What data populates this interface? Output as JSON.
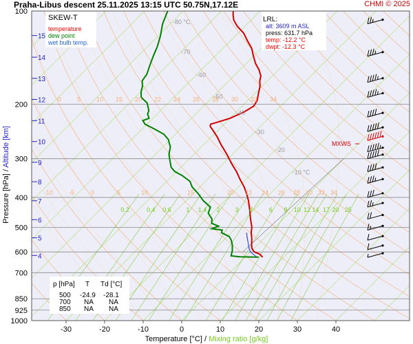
{
  "header": {
    "title": "Praha-Libus   descent   25.11.2025 13:15 UTC   50.75N,17.12E",
    "copyright": "CHMI © 2025"
  },
  "colors": {
    "background": "#eeeef8",
    "grid": "#888888",
    "isotherm": "#a8e068",
    "dry_adiabat": "#f2b07a",
    "moist_adiabat": "#f6c79c",
    "temperature": "#d00000",
    "dewpoint": "#008000",
    "wetbulb": "#2f4fcf",
    "mixing_ratio": "#88cc44",
    "mixing_label": "#77cc22",
    "wind": "#000000",
    "mxws": "#e00000",
    "legend_temp": "#ff0000",
    "legend_dew": "#008000",
    "legend_wet": "#2266dd",
    "alt": "#2222cc"
  },
  "chart_data": {
    "type": "line",
    "subtype": "skew-T log-p",
    "xlabel": "Temperature [°C]",
    "xlabel_sep": " / ",
    "xlabel2": "Mixing ratio [g/kg]",
    "ylabel": "Pressure [hPa]",
    "ylabel_sep": " / ",
    "ylabel2": "Altitude [km]",
    "x_ticks": [
      -30,
      -20,
      -10,
      0,
      10,
      20,
      30,
      40
    ],
    "p_ticks": [
      100,
      200,
      300,
      400,
      500,
      600,
      700,
      850,
      925,
      1000
    ],
    "alt_ticks": [
      {
        "km": 4,
        "p": 616
      },
      {
        "km": 5,
        "p": 540
      },
      {
        "km": 6,
        "p": 472
      },
      {
        "km": 7,
        "p": 410
      },
      {
        "km": 8,
        "p": 356
      },
      {
        "km": 9,
        "p": 308
      },
      {
        "km": 10,
        "p": 264
      },
      {
        "km": 11,
        "p": 226
      },
      {
        "km": 12,
        "p": 193
      },
      {
        "km": 13,
        "p": 165
      },
      {
        "km": 14,
        "p": 141
      },
      {
        "km": 15,
        "p": 120
      }
    ],
    "isotherm_labels": [
      {
        "t": -80,
        "p": 108,
        "text": "-80 °C"
      },
      {
        "t": -70,
        "p": 135,
        "text": "-70"
      },
      {
        "t": -60,
        "p": 160,
        "text": "-60"
      },
      {
        "t": -50,
        "p": 188,
        "text": "-50"
      },
      {
        "t": -40,
        "p": 212,
        "text": "-40"
      },
      {
        "t": -30,
        "p": 245,
        "text": "-30"
      },
      {
        "t": -20,
        "p": 280,
        "text": "-20"
      },
      {
        "t": -10,
        "p": 330,
        "text": "-10 °C"
      }
    ],
    "mixing_ratio_labels": [
      "0.2",
      "0.4",
      "0.6",
      "1",
      "1.4",
      "2",
      "3",
      "4",
      "6",
      "8",
      "10",
      "12",
      "14",
      "17",
      "20",
      "25"
    ],
    "moist_labels_200": [
      "0",
      "5",
      "10",
      "15",
      "20",
      "22",
      "24",
      "26",
      "28",
      "30",
      "32",
      "34"
    ],
    "moist_labels_400": [
      "-10",
      "-5",
      "0",
      "5",
      "10",
      "15",
      "20",
      "22",
      "24",
      "26",
      "28",
      "30",
      "32",
      "34"
    ],
    "series": [
      {
        "name": "temperature",
        "points": [
          [
            624,
            4.5
          ],
          [
            610,
            3.0
          ],
          [
            600,
            1.0
          ],
          [
            585,
            -0.5
          ],
          [
            570,
            -1.5
          ],
          [
            545,
            -3.0
          ],
          [
            520,
            -4.8
          ],
          [
            500,
            -6.0
          ],
          [
            470,
            -8.5
          ],
          [
            440,
            -11.0
          ],
          [
            410,
            -13.8
          ],
          [
            390,
            -16.0
          ],
          [
            370,
            -18.5
          ],
          [
            350,
            -21.5
          ],
          [
            330,
            -24.5
          ],
          [
            310,
            -28.0
          ],
          [
            290,
            -31.5
          ],
          [
            270,
            -35.5
          ],
          [
            255,
            -38.5
          ],
          [
            242,
            -41.5
          ],
          [
            236,
            -43.0
          ],
          [
            232,
            -43.5
          ],
          [
            228,
            -42.0
          ],
          [
            222,
            -40.0
          ],
          [
            212,
            -38.0
          ],
          [
            203,
            -37.0
          ],
          [
            195,
            -37.5
          ],
          [
            185,
            -39.0
          ],
          [
            175,
            -40.5
          ],
          [
            168,
            -42.0
          ],
          [
            162,
            -43.0
          ],
          [
            155,
            -45.0
          ],
          [
            148,
            -47.5
          ],
          [
            140,
            -50.0
          ],
          [
            132,
            -52.5
          ],
          [
            125,
            -55.5
          ],
          [
            118,
            -58.5
          ],
          [
            112,
            -62.0
          ],
          [
            107,
            -64.5
          ],
          [
            103,
            -66.0
          ],
          [
            100,
            -67.0
          ]
        ]
      },
      {
        "name": "dew point",
        "points": [
          [
            624,
            3.5
          ],
          [
            622,
            -1.5
          ],
          [
            618,
            -4.0
          ],
          [
            595,
            -5.0
          ],
          [
            570,
            -6.5
          ],
          [
            550,
            -8.0
          ],
          [
            535,
            -9.5
          ],
          [
            520,
            -12.5
          ],
          [
            510,
            -13.0
          ],
          [
            505,
            -16.0
          ],
          [
            495,
            -15.0
          ],
          [
            485,
            -17.5
          ],
          [
            470,
            -18.5
          ],
          [
            450,
            -21.0
          ],
          [
            430,
            -22.0
          ],
          [
            410,
            -25.5
          ],
          [
            390,
            -28.5
          ],
          [
            370,
            -32.0
          ],
          [
            355,
            -34.0
          ],
          [
            340,
            -37.5
          ],
          [
            330,
            -40.5
          ],
          [
            320,
            -42.5
          ],
          [
            305,
            -44.5
          ],
          [
            290,
            -46.5
          ],
          [
            275,
            -48.0
          ],
          [
            260,
            -50.5
          ],
          [
            250,
            -53.0
          ],
          [
            240,
            -57.0
          ],
          [
            232,
            -60.5
          ],
          [
            226,
            -62.0
          ],
          [
            222,
            -61.0
          ],
          [
            215,
            -62.5
          ],
          [
            210,
            -63.0
          ],
          [
            205,
            -64.0
          ],
          [
            198,
            -65.5
          ],
          [
            190,
            -68.5
          ],
          [
            182,
            -70.0
          ],
          [
            175,
            -71.0
          ],
          [
            168,
            -72.5
          ],
          [
            160,
            -73.0
          ],
          [
            150,
            -74.5
          ],
          [
            140,
            -76.0
          ],
          [
            130,
            -77.5
          ],
          [
            120,
            -79.5
          ],
          [
            110,
            -82.0
          ],
          [
            100,
            -84.0
          ]
        ]
      },
      {
        "name": "wet bulb temp.",
        "points": [
          [
            622,
            2.8
          ],
          [
            600,
            0.0
          ],
          [
            580,
            -1.6
          ],
          [
            560,
            -3.0
          ],
          [
            540,
            -4.5
          ],
          [
            520,
            -6.0
          ]
        ]
      }
    ],
    "legend": {
      "title": "SKEW-T",
      "entries": [
        "temperature",
        "dew point",
        "wet bulb temp."
      ]
    },
    "lrl": {
      "title": "LRL:",
      "alt": "alt: 3609 m ASL",
      "press": "press: 631.7 hPa",
      "temp": "temp: -12.2 °C",
      "dwpt": "dwpt: -12.3 °C"
    },
    "table": {
      "headers": [
        "p [hPa]",
        "T",
        "Td [°C]"
      ],
      "rows": [
        [
          "500",
          "-24.9",
          "-28.1"
        ],
        [
          "700",
          "NA",
          "NA"
        ],
        [
          "850",
          "NA",
          "NA"
        ]
      ]
    },
    "wind_label": "MXWS",
    "wind_profile": [
      {
        "p": 110,
        "speed": 25
      },
      {
        "p": 140,
        "speed": 35
      },
      {
        "p": 170,
        "speed": 45
      },
      {
        "p": 190,
        "speed": 45
      },
      {
        "p": 220,
        "speed": 40
      },
      {
        "p": 245,
        "speed": 50
      },
      {
        "p": 262,
        "speed": 60,
        "max": true
      },
      {
        "p": 285,
        "speed": 55
      },
      {
        "p": 300,
        "speed": 50
      },
      {
        "p": 330,
        "speed": 40
      },
      {
        "p": 360,
        "speed": 35
      },
      {
        "p": 400,
        "speed": 30
      },
      {
        "p": 430,
        "speed": 25
      },
      {
        "p": 470,
        "speed": 20
      },
      {
        "p": 510,
        "speed": 15
      },
      {
        "p": 550,
        "speed": 10
      },
      {
        "p": 590,
        "speed": 10
      },
      {
        "p": 625,
        "speed": 5
      }
    ]
  }
}
